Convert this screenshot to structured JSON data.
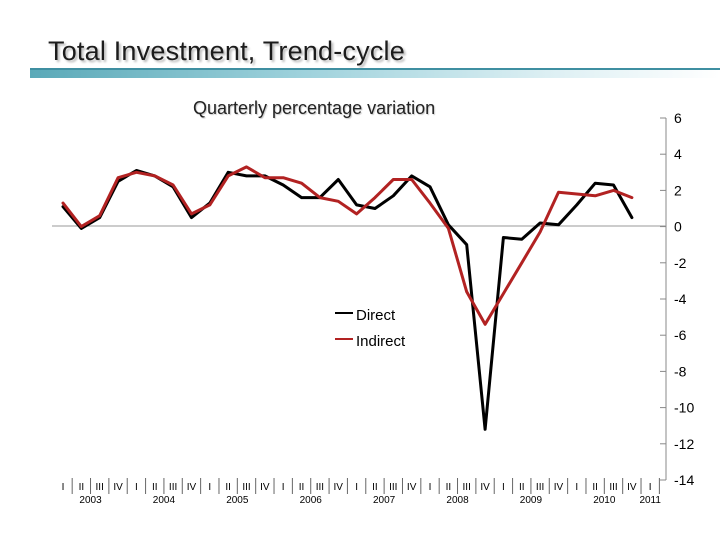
{
  "title": "Total Investment, Trend-cycle",
  "chart_data": {
    "type": "line",
    "title": "Quarterly percentage variation",
    "quarter_labels": [
      "I",
      "II",
      "III",
      "IV"
    ],
    "year_labels": [
      "2003",
      "2004",
      "2005",
      "2006",
      "2007",
      "2008",
      "2009",
      "2010",
      "2011"
    ],
    "y_ticks": [
      "6",
      "4",
      "2",
      "0",
      "-2",
      "-4",
      "-6",
      "-8",
      "-10",
      "-12",
      "-14"
    ],
    "ylim": [
      -14,
      6
    ],
    "x": [
      "2003-I",
      "2003-II",
      "2003-III",
      "2003-IV",
      "2004-I",
      "2004-II",
      "2004-III",
      "2004-IV",
      "2005-I",
      "2005-II",
      "2005-III",
      "2005-IV",
      "2006-I",
      "2006-II",
      "2006-III",
      "2006-IV",
      "2007-I",
      "2007-II",
      "2007-III",
      "2007-IV",
      "2008-I",
      "2008-II",
      "2008-III",
      "2008-IV",
      "2009-I",
      "2009-II",
      "2009-III",
      "2009-IV",
      "2010-I",
      "2010-II",
      "2010-III",
      "2010-IV",
      "2011-I"
    ],
    "series": [
      {
        "name": "Direct",
        "color": "#000000",
        "values": [
          1.1,
          -0.1,
          0.5,
          2.5,
          3.1,
          2.8,
          2.2,
          0.5,
          1.3,
          3.0,
          2.8,
          2.8,
          2.3,
          1.6,
          1.6,
          2.6,
          1.2,
          1.0,
          1.7,
          2.8,
          2.2,
          0.1,
          -1.0,
          -11.2,
          -0.6,
          -0.7,
          0.2,
          0.1,
          1.2,
          2.4,
          2.3,
          0.5,
          null
        ]
      },
      {
        "name": "Indirect",
        "color": "#b22222",
        "values": [
          1.3,
          0.0,
          0.6,
          2.7,
          3.0,
          2.8,
          2.3,
          0.7,
          1.2,
          2.8,
          3.3,
          2.7,
          2.7,
          2.4,
          1.6,
          1.4,
          0.7,
          1.6,
          2.6,
          2.6,
          1.3,
          -0.1,
          -3.6,
          -5.4,
          -3.7,
          -2.0,
          -0.3,
          1.9,
          1.8,
          1.7,
          2.0,
          1.6,
          null
        ]
      }
    ],
    "legend": {
      "position": "center-left",
      "entries": [
        "Direct",
        "Indirect"
      ]
    }
  }
}
